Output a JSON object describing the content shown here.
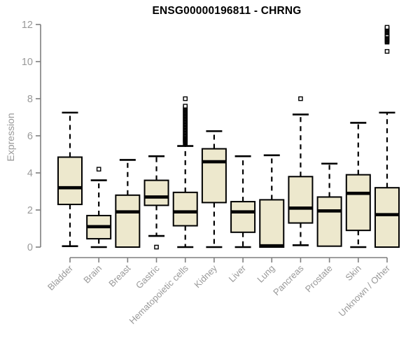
{
  "figure": {
    "kind": "gene-expression-boxplot"
  },
  "chart_data": {
    "type": "box",
    "title": "ENSG00000196811 - CHRNG",
    "xlabel": "",
    "ylabel": "Expression",
    "ylim": [
      0,
      12
    ],
    "yticks": [
      0,
      2,
      4,
      6,
      8,
      10,
      12
    ],
    "grid": false,
    "legend": "none",
    "categories": [
      "Bladder",
      "Brain",
      "Breast",
      "Gastric",
      "Hematopoietic cells",
      "Kidney",
      "Liver",
      "Lung",
      "Pancreas",
      "Prostate",
      "Skin",
      "Unknown / Other"
    ],
    "series": [
      {
        "category": "Bladder",
        "low": 0.05,
        "q1": 2.3,
        "median": 3.2,
        "q3": 4.85,
        "high": 7.25,
        "outliers": []
      },
      {
        "category": "Brain",
        "low": 0.0,
        "q1": 0.45,
        "median": 1.1,
        "q3": 1.7,
        "high": 3.6,
        "outliers": [
          4.2
        ]
      },
      {
        "category": "Breast",
        "low": 0.0,
        "q1": 0.0,
        "median": 1.9,
        "q3": 2.8,
        "high": 4.7,
        "outliers": []
      },
      {
        "category": "Gastric",
        "low": 0.6,
        "q1": 2.25,
        "median": 2.7,
        "q3": 3.6,
        "high": 4.9,
        "outliers": [
          0.0
        ]
      },
      {
        "category": "Hematopoietic cells",
        "low": 0.0,
        "q1": 1.15,
        "median": 1.9,
        "q3": 2.95,
        "high": 5.45,
        "outliers": [
          5.6,
          5.64,
          5.68,
          5.72,
          5.76,
          5.8,
          5.84,
          5.88,
          5.92,
          5.96,
          6.0,
          6.05,
          6.1,
          6.15,
          6.2,
          6.25,
          6.3,
          6.35,
          6.4,
          6.45,
          6.5,
          6.55,
          6.6,
          6.65,
          6.7,
          6.75,
          6.8,
          6.85,
          6.9,
          6.95,
          7.0,
          7.05,
          7.1,
          7.15,
          7.2,
          7.25,
          7.3,
          7.35,
          7.4,
          7.45,
          7.5,
          7.55,
          7.6,
          8.0
        ]
      },
      {
        "category": "Kidney",
        "low": 0.0,
        "q1": 2.4,
        "median": 4.6,
        "q3": 5.3,
        "high": 6.25,
        "outliers": []
      },
      {
        "category": "Liver",
        "low": 0.0,
        "q1": 0.8,
        "median": 1.9,
        "q3": 2.45,
        "high": 4.9,
        "outliers": []
      },
      {
        "category": "Lung",
        "low": 0.0,
        "q1": 0.0,
        "median": 0.07,
        "q3": 2.55,
        "high": 4.95,
        "outliers": []
      },
      {
        "category": "Pancreas",
        "low": 0.1,
        "q1": 1.3,
        "median": 2.1,
        "q3": 3.8,
        "high": 7.15,
        "outliers": [
          8.0
        ]
      },
      {
        "category": "Prostate",
        "low": 0.05,
        "q1": 0.05,
        "median": 1.95,
        "q3": 2.7,
        "high": 4.5,
        "outliers": []
      },
      {
        "category": "Skin",
        "low": 0.0,
        "q1": 0.9,
        "median": 2.9,
        "q3": 3.9,
        "high": 6.7,
        "outliers": []
      },
      {
        "category": "Unknown / Other",
        "low": 0.0,
        "q1": 0.0,
        "median": 1.75,
        "q3": 3.2,
        "high": 7.25,
        "outliers": [
          10.55,
          11.05,
          11.1,
          11.15,
          11.2,
          11.25,
          11.3,
          11.35,
          11.4,
          11.45,
          11.55,
          11.6,
          11.65,
          11.7,
          11.75,
          11.8,
          11.85
        ]
      }
    ],
    "colors": {
      "box_fill": "#ede8cd",
      "box_border": "#000000",
      "median": "#000000",
      "whisker": "#000000",
      "outlier_fill": "#ffffff",
      "axis": "#7f7f7f",
      "tick_labels": "#999999",
      "title": "#000000",
      "background": "#ffffff"
    }
  }
}
